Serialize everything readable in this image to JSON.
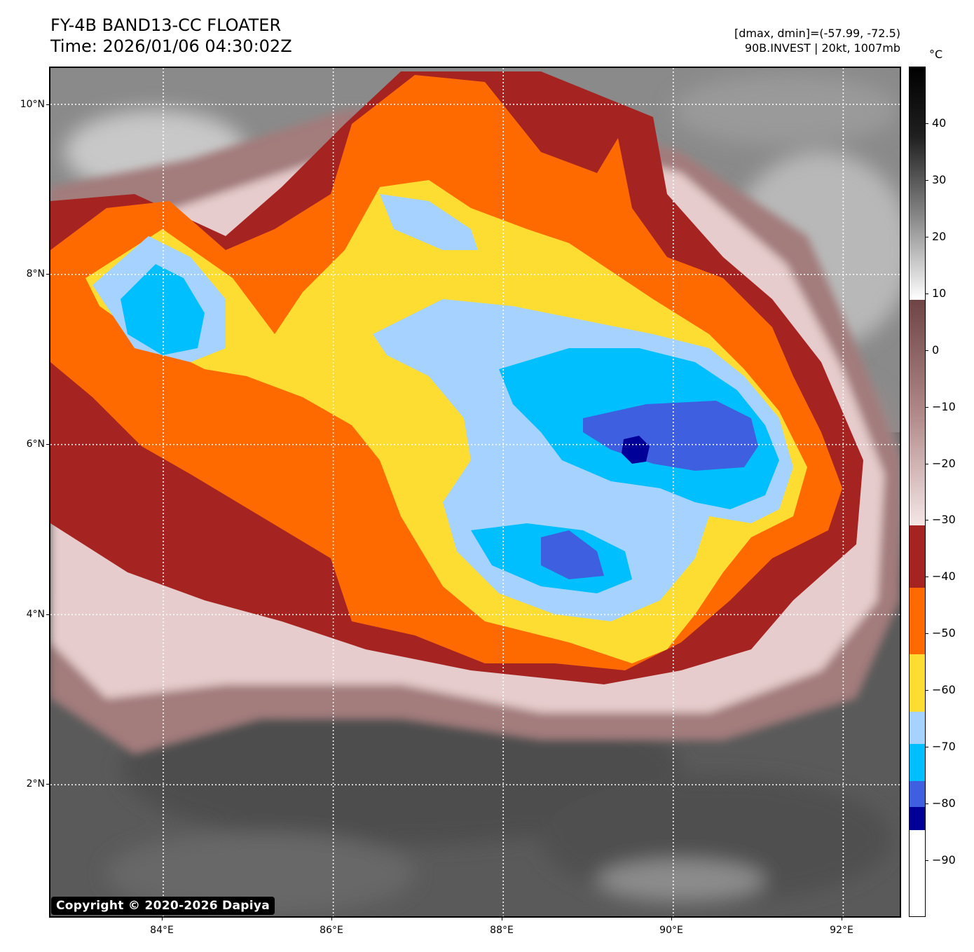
{
  "header": {
    "title_line1": "FY-4B BAND13-CC FLOATER",
    "title_line2": "Time: 2026/01/06 04:30:02Z",
    "info_line1": "[dmax, dmin]=(-57.99, -72.5)",
    "info_line2": "90B.INVEST | 20kt, 1007mb"
  },
  "map": {
    "copyright": "Copyright © 2020-2026 Dapiya",
    "lat_labels": [
      "10°N",
      "8°N",
      "6°N",
      "4°N",
      "2°N"
    ],
    "lon_labels": [
      "84°E",
      "86°E",
      "88°E",
      "90°E",
      "92°E"
    ],
    "lat_values": [
      10,
      8,
      6,
      4,
      2
    ],
    "lon_values": [
      84,
      86,
      88,
      90,
      92
    ]
  },
  "colorbar": {
    "unit": "°C",
    "tick_labels": [
      "40",
      "30",
      "20",
      "10",
      "0",
      "−10",
      "−20",
      "−30",
      "−40",
      "−50",
      "−60",
      "−70",
      "−80",
      "−90"
    ],
    "tick_values": [
      40,
      30,
      20,
      10,
      0,
      -10,
      -20,
      -30,
      -40,
      -50,
      -60,
      -70,
      -80,
      -90
    ],
    "range": [
      -100,
      50
    ],
    "colors": {
      "warm_black": "#000000",
      "warm_white": "#ffffff",
      "brown_top": "#8a5a5a",
      "pink_light": "#f2dede",
      "dark_red": "#a52421",
      "orange": "#ff6a00",
      "yellow": "#fddd32",
      "light_blue": "#a5d2ff",
      "cyan_blue": "#00bfff",
      "royal_blue": "#3d5fe0",
      "navy": "#000099",
      "cold_white": "#ffffff"
    }
  }
}
